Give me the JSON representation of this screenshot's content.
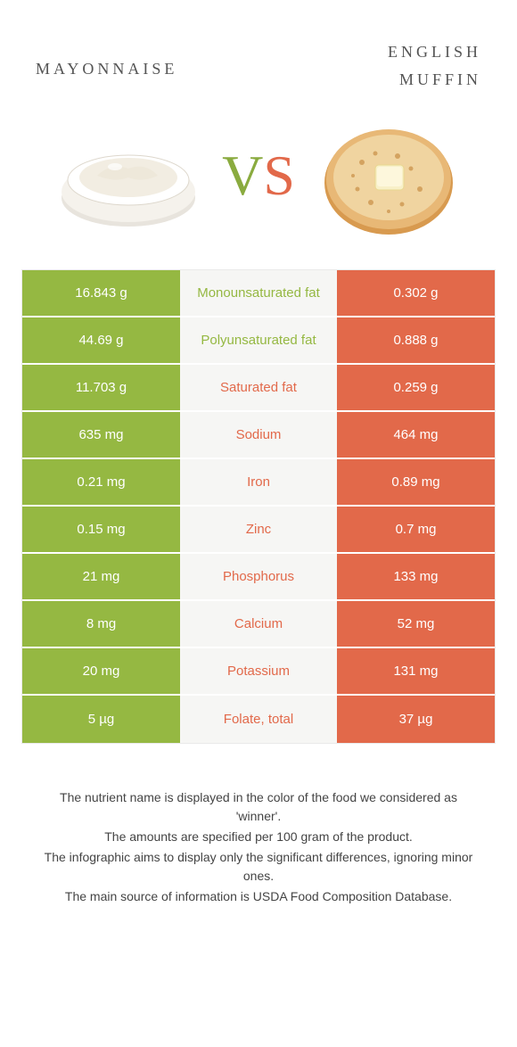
{
  "colors": {
    "left": "#95b842",
    "right": "#e2694a",
    "mid_bg": "#f6f6f4",
    "title": "#555555"
  },
  "header": {
    "left_title": "mayonnaise",
    "right_title_line1": "english",
    "right_title_line2": "muffin",
    "vs_v": "V",
    "vs_s": "S"
  },
  "rows": [
    {
      "left": "16.843 g",
      "label": "Monounsaturated fat",
      "right": "0.302 g",
      "winner": "left"
    },
    {
      "left": "44.69 g",
      "label": "Polyunsaturated fat",
      "right": "0.888 g",
      "winner": "left"
    },
    {
      "left": "11.703 g",
      "label": "Saturated fat",
      "right": "0.259 g",
      "winner": "right"
    },
    {
      "left": "635 mg",
      "label": "Sodium",
      "right": "464 mg",
      "winner": "right"
    },
    {
      "left": "0.21 mg",
      "label": "Iron",
      "right": "0.89 mg",
      "winner": "right"
    },
    {
      "left": "0.15 mg",
      "label": "Zinc",
      "right": "0.7 mg",
      "winner": "right"
    },
    {
      "left": "21 mg",
      "label": "Phosphorus",
      "right": "133 mg",
      "winner": "right"
    },
    {
      "left": "8 mg",
      "label": "Calcium",
      "right": "52 mg",
      "winner": "right"
    },
    {
      "left": "20 mg",
      "label": "Potassium",
      "right": "131 mg",
      "winner": "right"
    },
    {
      "left": "5 µg",
      "label": "Folate, total",
      "right": "37 µg",
      "winner": "right"
    }
  ],
  "footer": {
    "line1": "The nutrient name is displayed in the color of the food we considered as 'winner'.",
    "line2": "The amounts are specified per 100 gram of the product.",
    "line3": "The infographic aims to display only the significant differences, ignoring minor ones.",
    "line4": "The main source of information is USDA Food Composition Database."
  }
}
